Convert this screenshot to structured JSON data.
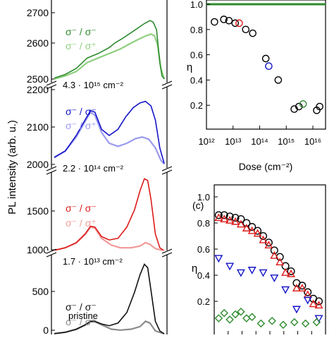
{
  "chart_data": [
    {
      "type": "line",
      "panel": "left",
      "ylabel": "PL intensity (arb. u.)",
      "segments": [
        {
          "name": "dose-4.3e15",
          "dose_label": "4.3 · 10¹⁵ cm⁻²",
          "ylim": [
            2500,
            2750
          ],
          "ticks": [
            "2500",
            "2600",
            "2700"
          ],
          "color_same": "#2e8b2e",
          "color_cross": "#8fcf7f",
          "legend_same": "σ⁻ / σ⁻",
          "legend_cross": "σ⁻ / σ⁺",
          "series_same": [
            [
              0,
              2508
            ],
            [
              0.1,
              2520
            ],
            [
              0.2,
              2540
            ],
            [
              0.3,
              2575
            ],
            [
              0.4,
              2590
            ],
            [
              0.5,
              2610
            ],
            [
              0.55,
              2625
            ],
            [
              0.62,
              2640
            ],
            [
              0.7,
              2660
            ],
            [
              0.76,
              2675
            ],
            [
              0.82,
              2690
            ],
            [
              0.87,
              2700
            ],
            [
              0.9,
              2695
            ],
            [
              0.93,
              2670
            ],
            [
              0.96,
              2560
            ],
            [
              0.98,
              2515
            ],
            [
              1.0,
              2505
            ]
          ],
          "series_cross": [
            [
              0,
              2505
            ],
            [
              0.1,
              2515
            ],
            [
              0.2,
              2530
            ],
            [
              0.3,
              2560
            ],
            [
              0.4,
              2575
            ],
            [
              0.5,
              2590
            ],
            [
              0.6,
              2605
            ],
            [
              0.7,
              2625
            ],
            [
              0.78,
              2640
            ],
            [
              0.84,
              2650
            ],
            [
              0.88,
              2655
            ],
            [
              0.91,
              2650
            ],
            [
              0.94,
              2620
            ],
            [
              0.97,
              2540
            ],
            [
              1.0,
              2505
            ]
          ]
        },
        {
          "name": "dose-2.2e14",
          "dose_label": "2.2 · 10¹⁴ cm⁻²",
          "ylim": [
            2000,
            2250
          ],
          "ticks": [
            "2000",
            "2100",
            "2200"
          ],
          "color_same": "#1515c8",
          "color_cross": "#9a9af0",
          "legend_same": "σ⁻ / σ⁻",
          "legend_cross": "σ⁻ / σ⁺",
          "series_same": [
            [
              0,
              2030
            ],
            [
              0.1,
              2050
            ],
            [
              0.2,
              2100
            ],
            [
              0.28,
              2150
            ],
            [
              0.33,
              2180
            ],
            [
              0.37,
              2175
            ],
            [
              0.43,
              2120
            ],
            [
              0.5,
              2100
            ],
            [
              0.58,
              2120
            ],
            [
              0.65,
              2160
            ],
            [
              0.72,
              2190
            ],
            [
              0.78,
              2205
            ],
            [
              0.83,
              2210
            ],
            [
              0.88,
              2195
            ],
            [
              0.92,
              2150
            ],
            [
              0.96,
              2060
            ],
            [
              1.0,
              2010
            ]
          ],
          "series_cross": [
            [
              0,
              2028
            ],
            [
              0.1,
              2050
            ],
            [
              0.2,
              2095
            ],
            [
              0.28,
              2145
            ],
            [
              0.33,
              2175
            ],
            [
              0.37,
              2165
            ],
            [
              0.43,
              2110
            ],
            [
              0.5,
              2075
            ],
            [
              0.58,
              2065
            ],
            [
              0.66,
              2075
            ],
            [
              0.74,
              2090
            ],
            [
              0.8,
              2095
            ],
            [
              0.86,
              2088
            ],
            [
              0.92,
              2060
            ],
            [
              0.97,
              2020
            ],
            [
              1.0,
              2008
            ]
          ]
        },
        {
          "name": "dose-1.7e13",
          "dose_label": "1.7 · 10¹³ cm⁻²",
          "ylim": [
            1000,
            1900
          ],
          "ticks": [
            "1000",
            "1500"
          ],
          "color_same": "#dd1a1a",
          "color_cross": "#f29a9a",
          "legend_same": "σ⁻ / σ⁻",
          "legend_cross": "σ⁻ / σ⁺",
          "series_same": [
            [
              0,
              1010
            ],
            [
              0.1,
              1040
            ],
            [
              0.2,
              1100
            ],
            [
              0.28,
              1200
            ],
            [
              0.33,
              1290
            ],
            [
              0.37,
              1280
            ],
            [
              0.43,
              1170
            ],
            [
              0.5,
              1130
            ],
            [
              0.58,
              1150
            ],
            [
              0.66,
              1280
            ],
            [
              0.73,
              1480
            ],
            [
              0.78,
              1700
            ],
            [
              0.82,
              1840
            ],
            [
              0.85,
              1820
            ],
            [
              0.88,
              1600
            ],
            [
              0.92,
              1200
            ],
            [
              0.96,
              1040
            ],
            [
              1.0,
              1005
            ]
          ],
          "series_cross": [
            [
              0,
              1010
            ],
            [
              0.1,
              1040
            ],
            [
              0.2,
              1095
            ],
            [
              0.28,
              1190
            ],
            [
              0.33,
              1280
            ],
            [
              0.37,
              1268
            ],
            [
              0.43,
              1150
            ],
            [
              0.52,
              1070
            ],
            [
              0.6,
              1040
            ],
            [
              0.7,
              1040
            ],
            [
              0.78,
              1060
            ],
            [
              0.83,
              1100
            ],
            [
              0.87,
              1080
            ],
            [
              0.92,
              1030
            ],
            [
              1.0,
              1005
            ]
          ]
        },
        {
          "name": "pristine",
          "dose_label": "pristine",
          "ylim": [
            0,
            900
          ],
          "ticks": [
            "0",
            "500"
          ],
          "color_same": "#111111",
          "color_cross": "#8a8a8a",
          "legend_same": "σ⁻ / σ⁻",
          "legend_cross": "σ⁻ / σ⁺",
          "series_same": [
            [
              0,
              10
            ],
            [
              0.1,
              25
            ],
            [
              0.2,
              60
            ],
            [
              0.28,
              110
            ],
            [
              0.33,
              150
            ],
            [
              0.37,
              150
            ],
            [
              0.43,
              120
            ],
            [
              0.5,
              100
            ],
            [
              0.58,
              130
            ],
            [
              0.66,
              250
            ],
            [
              0.73,
              480
            ],
            [
              0.78,
              680
            ],
            [
              0.82,
              800
            ],
            [
              0.85,
              760
            ],
            [
              0.88,
              500
            ],
            [
              0.92,
              150
            ],
            [
              0.96,
              40
            ],
            [
              1.0,
              8
            ]
          ],
          "series_cross": [
            [
              0,
              10
            ],
            [
              0.1,
              25
            ],
            [
              0.2,
              58
            ],
            [
              0.28,
              105
            ],
            [
              0.33,
              145
            ],
            [
              0.37,
              145
            ],
            [
              0.43,
              110
            ],
            [
              0.52,
              60
            ],
            [
              0.6,
              50
            ],
            [
              0.7,
              60
            ],
            [
              0.78,
              90
            ],
            [
              0.83,
              150
            ],
            [
              0.87,
              130
            ],
            [
              0.92,
              40
            ],
            [
              1.0,
              8
            ]
          ]
        }
      ]
    },
    {
      "type": "scatter",
      "panel": "top-right",
      "xlabel": "Dose (cm⁻²)",
      "ylabel": "η",
      "xscale": "log",
      "xlim": [
        1000000000000.0,
        3e+16
      ],
      "ylim": [
        0,
        1.0
      ],
      "xticks": [
        {
          "v": 1000000000000.0,
          "label": "10¹²"
        },
        {
          "v": 10000000000000.0,
          "label": "10¹³"
        },
        {
          "v": 100000000000000.0,
          "label": "10¹⁴"
        },
        {
          "v": 1000000000000000.0,
          "label": "10¹⁵"
        },
        {
          "v": 1e+16,
          "label": "10¹⁶"
        }
      ],
      "yticks": [
        {
          "v": 0.2,
          "label": "0.2"
        },
        {
          "v": 0.4,
          "label": "0.4"
        },
        {
          "v": 0.6,
          "label": "0.6"
        },
        {
          "v": 0.8,
          "label": "0.8"
        },
        {
          "v": 1.0,
          "label": "1.0"
        }
      ],
      "points": [
        {
          "x": 2000000000000.0,
          "y": 0.86,
          "color": "#000000"
        },
        {
          "x": 4500000000000.0,
          "y": 0.88,
          "color": "#000000"
        },
        {
          "x": 7000000000000.0,
          "y": 0.87,
          "color": "#000000"
        },
        {
          "x": 12000000000000.0,
          "y": 0.85,
          "color": "#000000"
        },
        {
          "x": 17000000000000.0,
          "y": 0.85,
          "color": "#dd1a1a"
        },
        {
          "x": 30000000000000.0,
          "y": 0.8,
          "color": "#000000"
        },
        {
          "x": 55000000000000.0,
          "y": 0.77,
          "color": "#000000"
        },
        {
          "x": 170000000000000.0,
          "y": 0.57,
          "color": "#000000"
        },
        {
          "x": 220000000000000.0,
          "y": 0.51,
          "color": "#1515c8"
        },
        {
          "x": 500000000000000.0,
          "y": 0.4,
          "color": "#000000"
        },
        {
          "x": 2000000000000000.0,
          "y": 0.17,
          "color": "#000000"
        },
        {
          "x": 3000000000000000.0,
          "y": 0.19,
          "color": "#000000"
        },
        {
          "x": 4300000000000000.0,
          "y": 0.21,
          "color": "#2e8b2e"
        },
        {
          "x": 1.4e+16,
          "y": 0.16,
          "color": "#000000"
        },
        {
          "x": 1.8e+16,
          "y": 0.19,
          "color": "#000000"
        }
      ]
    },
    {
      "type": "scatter",
      "panel": "bottom-right",
      "label": "(c)",
      "ylabel": "η",
      "ylim": [
        0,
        1.0
      ],
      "yticks": [
        {
          "v": 0.2,
          "label": "0.2"
        },
        {
          "v": 0.4,
          "label": "0.4"
        },
        {
          "v": 0.6,
          "label": "0.6"
        },
        {
          "v": 0.8,
          "label": "0.8"
        },
        {
          "v": 1.0,
          "label": "1.0"
        }
      ],
      "xlim": [
        0,
        1
      ],
      "series": [
        {
          "marker": "circle",
          "color": "#000000",
          "x": [
            0.04,
            0.09,
            0.14,
            0.19,
            0.24,
            0.29,
            0.34,
            0.39,
            0.44,
            0.49,
            0.54,
            0.59,
            0.64,
            0.69,
            0.74,
            0.79,
            0.84,
            0.89,
            0.94
          ],
          "y": [
            0.86,
            0.86,
            0.85,
            0.84,
            0.83,
            0.8,
            0.77,
            0.74,
            0.7,
            0.65,
            0.59,
            0.54,
            0.47,
            0.43,
            0.34,
            0.32,
            0.27,
            0.22,
            0.2
          ]
        },
        {
          "marker": "triangle-up",
          "color": "#dd1a1a",
          "x": [
            0.04,
            0.09,
            0.14,
            0.19,
            0.24,
            0.29,
            0.34,
            0.39,
            0.44,
            0.49,
            0.54,
            0.59,
            0.64,
            0.69,
            0.74,
            0.79,
            0.84,
            0.89,
            0.94
          ],
          "y": [
            0.84,
            0.83,
            0.82,
            0.81,
            0.79,
            0.76,
            0.74,
            0.72,
            0.67,
            0.63,
            0.55,
            0.5,
            0.42,
            0.41,
            0.3,
            0.3,
            0.25,
            0.18,
            0.17
          ]
        },
        {
          "marker": "triangle-down",
          "color": "#1515c8",
          "x": [
            0.04,
            0.14,
            0.24,
            0.34,
            0.44,
            0.54,
            0.64,
            0.74,
            0.84,
            0.94
          ],
          "y": [
            0.53,
            0.47,
            0.42,
            0.44,
            0.42,
            0.38,
            0.29,
            0.14,
            0.21,
            0.07
          ]
        },
        {
          "marker": "diamond",
          "color": "#2e8b2e",
          "x": [
            0.04,
            0.09,
            0.14,
            0.19,
            0.24,
            0.29,
            0.34,
            0.42,
            0.52,
            0.62,
            0.72,
            0.82,
            0.92
          ],
          "y": [
            0.07,
            0.11,
            0.06,
            0.1,
            0.12,
            0.07,
            0.08,
            0.03,
            0.05,
            0.02,
            0.04,
            0.03,
            0.04
          ]
        }
      ]
    }
  ]
}
